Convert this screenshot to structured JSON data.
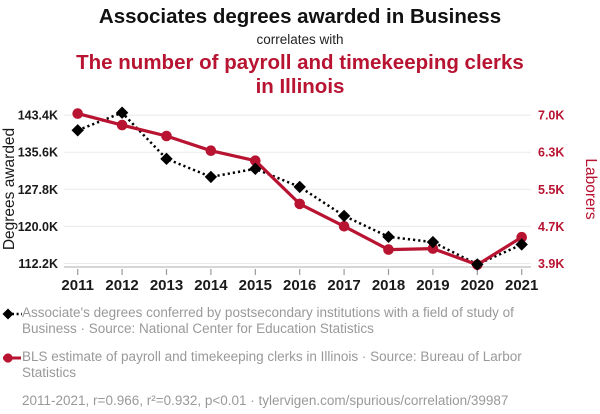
{
  "header": {
    "title": "Associates degrees awarded in Business",
    "connector": "correlates with",
    "subtitle": "The number of payroll and timekeeping clerks in Illinois"
  },
  "colors": {
    "red": "#b81432",
    "black": "#000000",
    "legend_gray": "#999999",
    "grid": "#eaeaea",
    "axis_line": "#c8c8c8",
    "tick_mark": "#999999"
  },
  "chart_data": {
    "type": "line",
    "title": "Associates degrees awarded in Business correlates with The number of payroll and timekeeping clerks in Illinois",
    "x": [
      2011,
      2012,
      2013,
      2014,
      2015,
      2016,
      2017,
      2018,
      2019,
      2020,
      2021
    ],
    "series": [
      {
        "name": "Associate's degrees conferred in Business",
        "axis": "left",
        "color": "#000000",
        "marker": "diamond",
        "line_style": "dotted",
        "values": [
          140200,
          143900,
          134200,
          130400,
          132100,
          128300,
          122200,
          117800,
          116700,
          112000,
          116200
        ]
      },
      {
        "name": "Payroll and timekeeping clerks in Illinois",
        "axis": "right",
        "color": "#b81432",
        "marker": "circle",
        "line_style": "solid",
        "values": [
          7090,
          6850,
          6620,
          6310,
          6100,
          5190,
          4720,
          4230,
          4250,
          3910,
          4490
        ]
      }
    ],
    "ylabel_left": "Degrees awarded",
    "ylabel_right": "Laborers",
    "yticks_left_labels": [
      "143.4K",
      "135.6K",
      "127.8K",
      "120.0K",
      "112.2K"
    ],
    "yticks_left_values": [
      143400,
      135600,
      127800,
      120000,
      112200
    ],
    "yticks_right_labels": [
      "7.0K",
      "6.3K",
      "5.5K",
      "4.7K",
      "3.9K"
    ],
    "ylim_left": [
      111460,
      145520
    ],
    "ylim_right": [
      3863,
      7272
    ],
    "grid": "horizontal",
    "legend_position": "bottom"
  },
  "legend": {
    "items": [
      {
        "swatch": "black-diamond-dotted",
        "label": "Associate's degrees conferred by postsecondary institutions with a field of study of Business · Source: National Center for Education Statistics"
      },
      {
        "swatch": "red-circle-solid",
        "label": "BLS estimate of payroll and timekeeping clerks in Illinois · Source: Bureau of Larbor Statistics"
      }
    ],
    "footer": "2011-2021, r=0.966, r²=0.932, p<0.01 · tylervigen.com/spurious/correlation/39987"
  }
}
